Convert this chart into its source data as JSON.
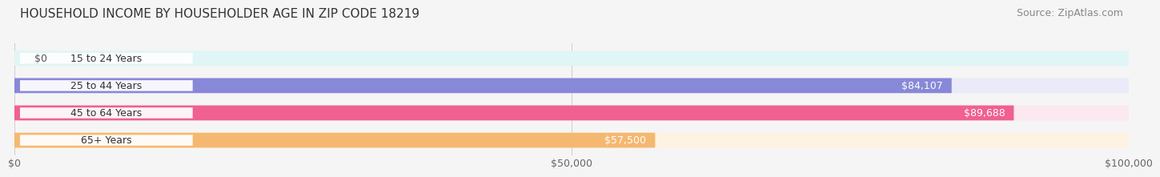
{
  "title": "HOUSEHOLD INCOME BY HOUSEHOLDER AGE IN ZIP CODE 18219",
  "source": "Source: ZipAtlas.com",
  "categories": [
    "15 to 24 Years",
    "25 to 44 Years",
    "45 to 64 Years",
    "65+ Years"
  ],
  "values": [
    0,
    84107,
    89688,
    57500
  ],
  "labels": [
    "$0",
    "$84,107",
    "$89,688",
    "$57,500"
  ],
  "bar_colors": [
    "#62d0d0",
    "#8888d8",
    "#f06090",
    "#f5b870"
  ],
  "bg_colors": [
    "#e0f5f5",
    "#eaeaf8",
    "#fce8f0",
    "#fef3e2"
  ],
  "xmax": 100000,
  "xticks": [
    0,
    50000,
    100000
  ],
  "xticklabels": [
    "$0",
    "$50,000",
    "$100,000"
  ],
  "title_fontsize": 11,
  "source_fontsize": 9,
  "label_fontsize": 9,
  "tick_fontsize": 9,
  "background_color": "#f5f5f5"
}
